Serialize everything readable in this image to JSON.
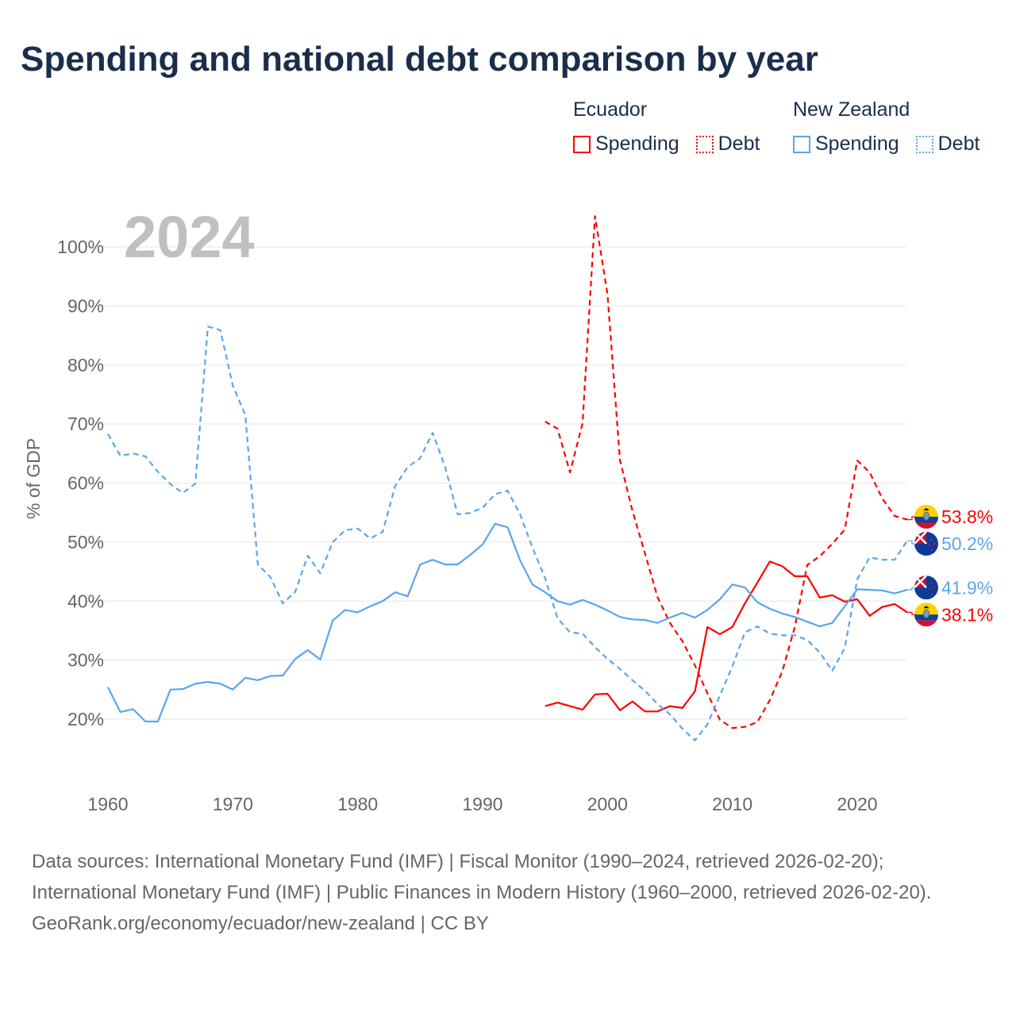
{
  "title": "Spending and national debt comparison by year",
  "legend": {
    "groups": [
      {
        "name": "Ecuador",
        "color": "#ff0000",
        "items": [
          "Spending",
          "Debt"
        ]
      },
      {
        "name": "New Zealand",
        "color": "#5aa5ec",
        "items": [
          "Spending",
          "Debt"
        ]
      }
    ]
  },
  "year_label": "2024",
  "footer": {
    "sources": "Data sources: International Monetary Fund (IMF) | Fiscal Monitor (1990–2024, retrieved 2026-02-20); International Monetary Fund (IMF) | Public Finances in Modern History (1960–2000, retrieved 2026-02-20).",
    "credit": "GeoRank.org/economy/ecuador/new-zealand | CC BY"
  },
  "chart_data": {
    "type": "line",
    "title": "Spending and national debt comparison by year",
    "xlabel": "",
    "ylabel": "% of GDP",
    "xlim": [
      1960,
      2024
    ],
    "ylim": [
      10,
      106
    ],
    "xticks": [
      1960,
      1970,
      1980,
      1990,
      2000,
      2010,
      2020
    ],
    "xtick_labels": [
      "1960",
      "1970",
      "1980",
      "1990",
      "2000",
      "2010",
      "2020"
    ],
    "yticks": [
      20,
      30,
      40,
      50,
      60,
      70,
      80,
      90,
      100
    ],
    "ytick_labels": [
      "20%",
      "30%",
      "40%",
      "50%",
      "60%",
      "70%",
      "80%",
      "90%",
      "100%"
    ],
    "grid": true,
    "legend_position": "top-right",
    "series": [
      {
        "name": "Ecuador Spending",
        "country": "Ecuador",
        "color": "#ff0000",
        "dashed": false,
        "start": 1995,
        "end_label": "38.1%",
        "values": [
          22.2,
          22.8,
          22.2,
          21.6,
          24.2,
          24.3,
          21.5,
          23.0,
          21.3,
          21.3,
          22.2,
          21.9,
          24.7,
          35.6,
          34.4,
          35.6,
          39.6,
          43.1,
          46.7,
          45.9,
          44.2,
          44.2,
          40.6,
          41.0,
          39.9,
          40.3,
          37.5,
          39.0,
          39.5,
          38.1
        ]
      },
      {
        "name": "Ecuador Debt",
        "country": "Ecuador",
        "color": "#ff0000",
        "dashed": true,
        "start": 1995,
        "end_label": "53.8%",
        "values": [
          70.4,
          69.2,
          61.8,
          70.1,
          105.2,
          92.0,
          63.8,
          55.3,
          48.1,
          40.7,
          36.3,
          33.2,
          29.1,
          24.4,
          19.9,
          18.5,
          18.7,
          19.5,
          23.2,
          28.1,
          35.6,
          46.1,
          47.6,
          49.7,
          52.1,
          63.8,
          61.8,
          57.4,
          54.4,
          53.8
        ]
      },
      {
        "name": "New Zealand Spending",
        "country": "New Zealand",
        "color": "#5aa5ec",
        "dashed": false,
        "start": 1960,
        "end_label": "41.9%",
        "values": [
          25.4,
          21.2,
          21.7,
          19.6,
          19.6,
          25.0,
          25.1,
          26.0,
          26.3,
          26.0,
          25.0,
          27.0,
          26.6,
          27.3,
          27.4,
          30.2,
          31.7,
          30.1,
          36.7,
          38.5,
          38.1,
          39.1,
          40.0,
          41.5,
          40.8,
          46.2,
          47.0,
          46.2,
          46.2,
          47.8,
          49.6,
          53.1,
          52.5,
          46.9,
          42.8,
          41.5,
          40.0,
          39.4,
          40.2,
          39.4,
          38.4,
          37.3,
          36.9,
          36.8,
          36.3,
          37.2,
          38.0,
          37.2,
          38.5,
          40.3,
          42.8,
          42.3,
          39.8,
          38.7,
          37.9,
          37.3,
          36.5,
          35.7,
          36.3,
          39.1,
          42.0,
          41.9,
          41.8,
          41.3,
          41.9
        ]
      },
      {
        "name": "New Zealand Debt",
        "country": "New Zealand",
        "color": "#5aa5ec",
        "dashed": true,
        "start": 1960,
        "end_label": "50.2%",
        "values": [
          68.3,
          64.6,
          65.0,
          64.5,
          61.9,
          59.8,
          58.3,
          59.9,
          86.5,
          85.9,
          76.5,
          71.5,
          46.2,
          44.1,
          39.6,
          41.6,
          47.7,
          44.7,
          50.0,
          52.0,
          52.3,
          50.6,
          51.7,
          59.5,
          62.7,
          64.2,
          68.5,
          62.7,
          54.7,
          54.9,
          55.8,
          58.1,
          58.7,
          54.7,
          49.0,
          43.9,
          37.1,
          34.7,
          34.5,
          32.2,
          30.2,
          28.5,
          26.6,
          24.8,
          22.6,
          20.8,
          18.4,
          16.4,
          19.1,
          24.0,
          28.9,
          34.7,
          35.7,
          34.5,
          34.2,
          34.2,
          33.4,
          31.3,
          28.2,
          32.0,
          43.7,
          47.4,
          47.0,
          47.0,
          50.2
        ]
      }
    ]
  }
}
